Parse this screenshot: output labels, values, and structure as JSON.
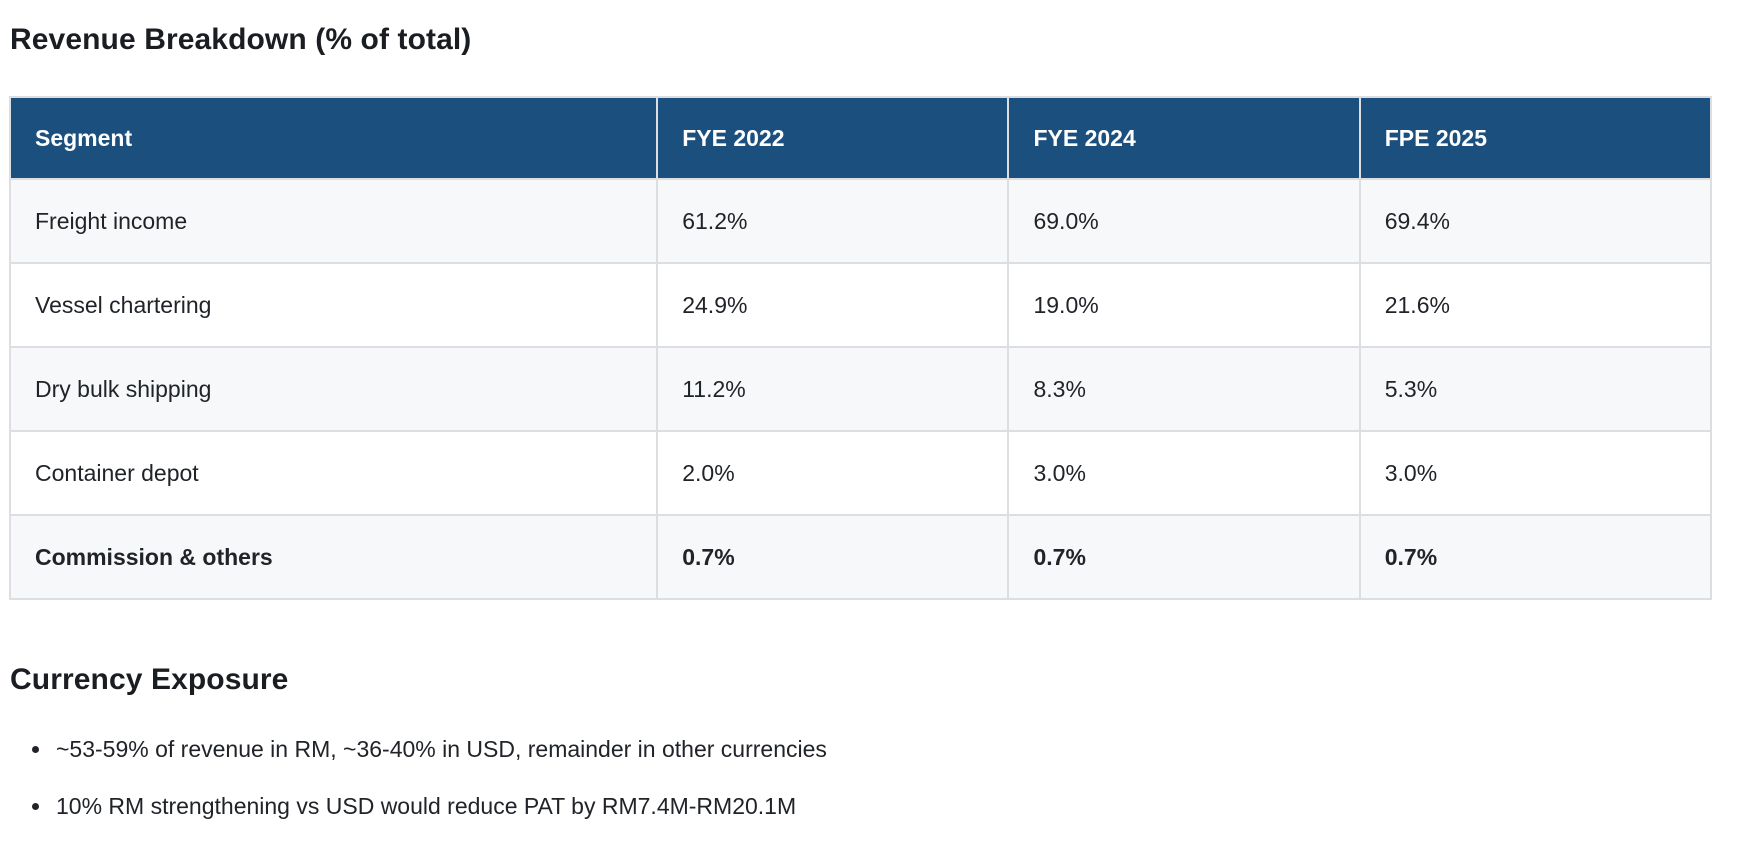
{
  "colors": {
    "header_bg": "#1b4f7d",
    "header_text": "#ffffff",
    "row_alt_bg": "#f7f8fa",
    "border": "#dcdee2",
    "text": "#202429"
  },
  "sections": {
    "revenue": {
      "heading": "Revenue Breakdown (% of total)"
    },
    "currency": {
      "heading": "Currency Exposure",
      "bullets": [
        "~53-59% of revenue in RM, ~36-40% in USD, remainder in other currencies",
        "10% RM strengthening vs USD would reduce PAT by RM7.4M-RM20.1M"
      ]
    }
  },
  "table": {
    "columns": [
      "Segment",
      "FYE 2022",
      "FYE 2024",
      "FPE 2025"
    ],
    "rows": [
      {
        "segment": "Freight income",
        "values": [
          "61.2%",
          "69.0%",
          "69.4%"
        ],
        "emphasis": false
      },
      {
        "segment": "Vessel chartering",
        "values": [
          "24.9%",
          "19.0%",
          "21.6%"
        ],
        "emphasis": false
      },
      {
        "segment": "Dry bulk shipping",
        "values": [
          "11.2%",
          "8.3%",
          "5.3%"
        ],
        "emphasis": false
      },
      {
        "segment": "Container depot",
        "values": [
          "2.0%",
          "3.0%",
          "3.0%"
        ],
        "emphasis": false
      },
      {
        "segment": "Commission & others",
        "values": [
          "0.7%",
          "0.7%",
          "0.7%"
        ],
        "emphasis": true
      }
    ]
  }
}
